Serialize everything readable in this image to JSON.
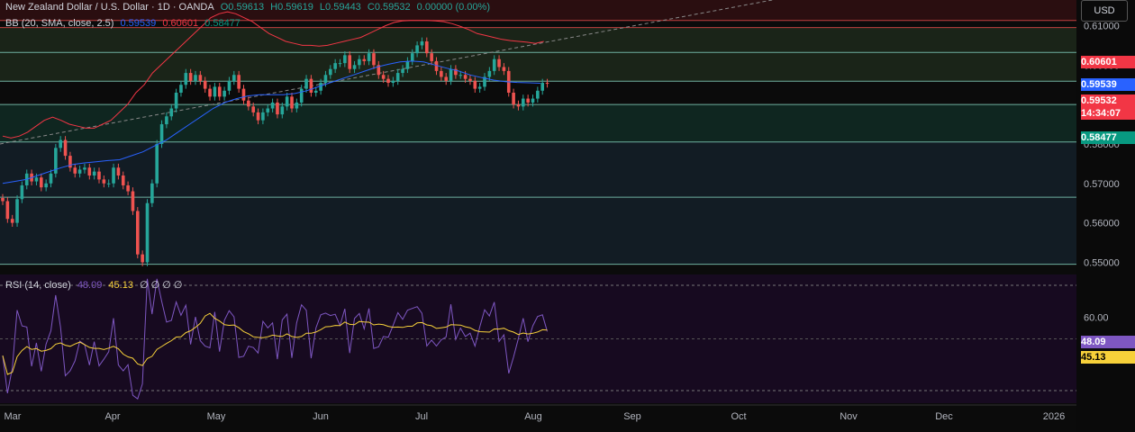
{
  "header": {
    "symbol": "New Zealand Dollar / U.S. Dollar · 1D · OANDA",
    "open": "O0.59613",
    "high": "H0.59619",
    "low": "L0.59443",
    "close": "C0.59532",
    "change": "0.00000 (0.00%)"
  },
  "bb_legend": {
    "label": "BB (20, SMA, close, 2.5)",
    "basis": "0.59539",
    "upper": "0.60601",
    "lower": "0.58477"
  },
  "rsi_legend": {
    "label": "RSI (14, close)",
    "rsi": "48.09",
    "ma": "45.13",
    "extras": "∅ ∅ ∅ ∅"
  },
  "currency_button": "USD",
  "price_badges": {
    "upper": "0.60601",
    "basis": "0.59539",
    "last": "0.59532",
    "countdown": "14:34:07",
    "lower": "0.58477",
    "rsi": "48.09",
    "rsi_ma": "45.13"
  },
  "colors": {
    "up": "#26a69a",
    "down": "#ef5350",
    "bb_upper": "#f23645",
    "bb_basis": "#2962ff",
    "bb_lower": "#089981",
    "rsi": "#7e57c2",
    "rsi_ma": "#f7d13a"
  },
  "chart_data": {
    "type": "candlestick",
    "ylim": [
      0.5485,
      0.6165
    ],
    "y_ticks": [
      "0.61000",
      "0.60000",
      "0.59000",
      "0.58000",
      "0.57000",
      "0.56000",
      "0.55000"
    ],
    "y_tick_values": [
      0.61,
      0.6,
      0.59,
      0.58,
      0.57,
      0.56,
      0.55
    ],
    "x_ticks": [
      "Mar",
      "Apr",
      "May",
      "Jun",
      "Jul",
      "Aug",
      "Sep",
      "Oct",
      "Nov",
      "Dec",
      "2026"
    ],
    "horizontal_levels": [
      0.6113,
      0.6095,
      0.6032,
      0.5959,
      0.59,
      0.5805,
      0.5665,
      0.5495
    ],
    "close_prices": [
      0.5655,
      0.561,
      0.56,
      0.566,
      0.5695,
      0.5725,
      0.5705,
      0.5715,
      0.569,
      0.57,
      0.5725,
      0.579,
      0.581,
      0.577,
      0.574,
      0.5725,
      0.5735,
      0.574,
      0.572,
      0.573,
      0.571,
      0.57,
      0.57,
      0.574,
      0.572,
      0.5695,
      0.568,
      0.563,
      0.552,
      0.55,
      0.565,
      0.57,
      0.58,
      0.585,
      0.587,
      0.589,
      0.593,
      0.595,
      0.598,
      0.596,
      0.5975,
      0.596,
      0.594,
      0.592,
      0.5945,
      0.592,
      0.5935,
      0.596,
      0.5975,
      0.594,
      0.591,
      0.5895,
      0.588,
      0.586,
      0.588,
      0.589,
      0.5905,
      0.5875,
      0.5895,
      0.592,
      0.589,
      0.5905,
      0.594,
      0.5965,
      0.593,
      0.5935,
      0.5955,
      0.5975,
      0.599,
      0.6005,
      0.6005,
      0.6025,
      0.599,
      0.6,
      0.6015,
      0.601,
      0.603,
      0.6,
      0.5975,
      0.5965,
      0.5955,
      0.596,
      0.598,
      0.599,
      0.601,
      0.603,
      0.605,
      0.606,
      0.603,
      0.601,
      0.5985,
      0.597,
      0.596,
      0.599,
      0.5975,
      0.5975,
      0.5965,
      0.596,
      0.594,
      0.5945,
      0.597,
      0.5985,
      0.6015,
      0.5995,
      0.5985,
      0.593,
      0.59,
      0.5895,
      0.5915,
      0.5905,
      0.5915,
      0.5935,
      0.5955,
      0.5953
    ],
    "bb_upper": [
      0.582,
      0.5815,
      0.582,
      0.583,
      0.5845,
      0.586,
      0.5868,
      0.586,
      0.585,
      0.5845,
      0.584,
      0.584,
      0.585,
      0.586,
      0.588,
      0.59,
      0.593,
      0.595,
      0.598,
      0.6,
      0.602,
      0.604,
      0.606,
      0.608,
      0.61,
      0.612,
      0.613,
      0.6135,
      0.613,
      0.612,
      0.611,
      0.6095,
      0.608,
      0.607,
      0.606,
      0.6055,
      0.605,
      0.605,
      0.6048,
      0.605,
      0.6055,
      0.606,
      0.6065,
      0.607,
      0.608,
      0.609,
      0.61,
      0.6108,
      0.6112,
      0.6113,
      0.6113,
      0.6113,
      0.6112,
      0.611,
      0.6105,
      0.6098,
      0.609,
      0.608,
      0.6075,
      0.607,
      0.6065,
      0.6062,
      0.606,
      0.6058,
      0.6055,
      0.606
    ],
    "bb_basis": [
      0.57,
      0.5705,
      0.571,
      0.572,
      0.573,
      0.574,
      0.5748,
      0.5752,
      0.5755,
      0.5758,
      0.576,
      0.577,
      0.578,
      0.5795,
      0.581,
      0.583,
      0.585,
      0.587,
      0.589,
      0.5905,
      0.5915,
      0.5922,
      0.5925,
      0.5925,
      0.5925,
      0.5928,
      0.5935,
      0.5945,
      0.5955,
      0.5965,
      0.5975,
      0.5985,
      0.5995,
      0.6002,
      0.6008,
      0.601,
      0.6008,
      0.6,
      0.5992,
      0.5985,
      0.5975,
      0.5968,
      0.5962,
      0.5958,
      0.5956,
      0.5955,
      0.5954
    ]
  }
}
